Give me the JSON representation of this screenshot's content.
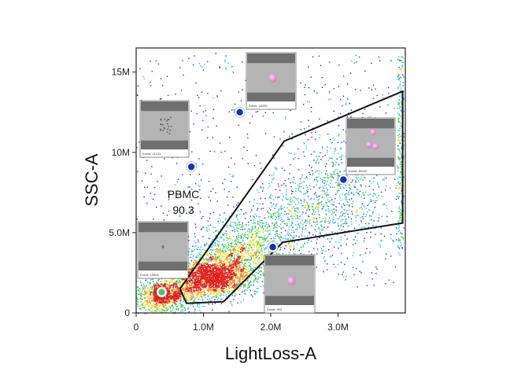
{
  "chart_data": {
    "type": "scatter",
    "title": "",
    "xlabel": "LightLoss-A",
    "ylabel": "SSC-A",
    "xlim": [
      0,
      4000000
    ],
    "ylim": [
      0,
      16500000
    ],
    "x_ticks": [
      {
        "value": 0,
        "label": "0"
      },
      {
        "value": 1000000,
        "label": "1.0M"
      },
      {
        "value": 2000000,
        "label": "2.0M"
      },
      {
        "value": 3000000,
        "label": "3.0M"
      }
    ],
    "y_ticks": [
      {
        "value": 0,
        "label": "0"
      },
      {
        "value": 5000000,
        "label": "5.0M"
      },
      {
        "value": 10000000,
        "label": "10M"
      },
      {
        "value": 15000000,
        "label": "15M"
      }
    ],
    "color_scale": "density (blue → cyan → green → yellow → red)",
    "grid": false,
    "gate": {
      "name": "PBMC",
      "percent": "90.3",
      "vertices": [
        [
          650000,
          1500000
        ],
        [
          750000,
          600000
        ],
        [
          1300000,
          700000
        ],
        [
          2180000,
          4400000
        ],
        [
          3960000,
          5600000
        ],
        [
          3960000,
          13800000
        ],
        [
          2200000,
          10700000
        ],
        [
          650000,
          1500000
        ]
      ]
    },
    "highlighted_events": [
      {
        "x": 380000,
        "y": 1300000,
        "color": "#44c86a",
        "image": {
          "caption": "Event: 19528",
          "content": "small-dim-object"
        }
      },
      {
        "x": 2030000,
        "y": 4100000,
        "color": "#1430c8",
        "image": {
          "caption": "Event: 903",
          "content": "single-cell"
        }
      },
      {
        "x": 3080000,
        "y": 8300000,
        "color": "#1430c8",
        "image": {
          "caption": "Event: 80140",
          "content": "cell-cluster"
        }
      },
      {
        "x": 820000,
        "y": 9100000,
        "color": "#1430c8",
        "image": {
          "caption": "Event: 21131",
          "content": "debris"
        }
      },
      {
        "x": 1540000,
        "y": 12500000,
        "color": "#1430c8",
        "image": {
          "caption": "Event: 18339",
          "content": "single-cell"
        }
      }
    ]
  }
}
